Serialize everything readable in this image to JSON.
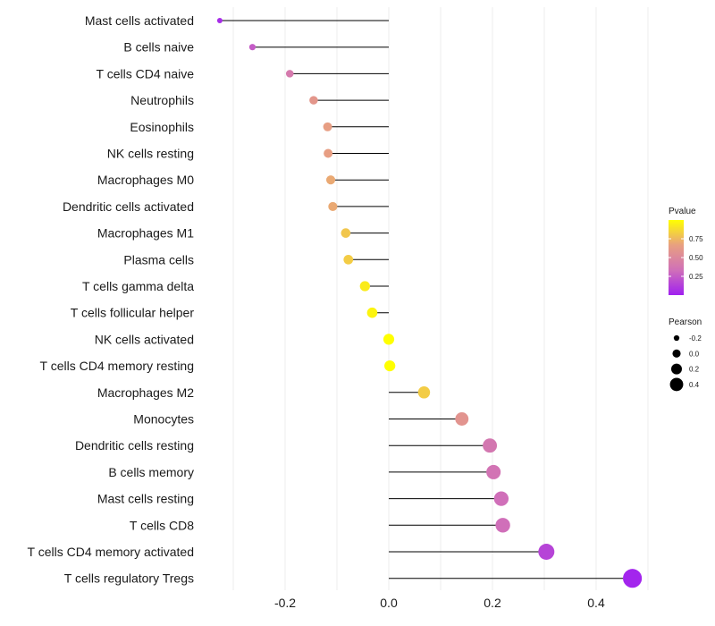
{
  "chart_data": {
    "type": "lollipop",
    "title": "",
    "xlabel": "",
    "ylabel": "",
    "xlim": [
      -0.3,
      0.5
    ],
    "xticks": [
      -0.2,
      0.0,
      0.2,
      0.4
    ],
    "xtick_labels": [
      "-0.2",
      "0.0",
      "0.2",
      "0.4"
    ],
    "categories": [
      "Mast cells activated",
      "B cells naive",
      "T cells CD4 naive",
      "Neutrophils",
      "Eosinophils",
      "NK cells resting",
      "Macrophages M0",
      "Dendritic cells activated",
      "Macrophages M1",
      "Plasma cells",
      "T cells gamma delta",
      "T cells follicular helper",
      "NK cells activated",
      "T cells CD4 memory resting",
      "Macrophages M2",
      "Monocytes",
      "Dendritic cells resting",
      "B cells memory",
      "Mast cells resting",
      "T cells CD8",
      "T cells CD4 memory activated",
      "T cells regulatory  Tregs"
    ],
    "pearson": [
      -0.326,
      -0.263,
      -0.191,
      -0.145,
      -0.118,
      -0.117,
      -0.112,
      -0.108,
      -0.083,
      -0.078,
      -0.046,
      -0.032,
      0.0,
      0.002,
      0.068,
      0.141,
      0.195,
      0.202,
      0.217,
      0.22,
      0.304,
      0.47
    ],
    "pvalue": [
      0.05,
      0.25,
      0.4,
      0.6,
      0.65,
      0.65,
      0.7,
      0.7,
      0.8,
      0.82,
      0.93,
      0.96,
      1.0,
      1.0,
      0.82,
      0.58,
      0.38,
      0.36,
      0.33,
      0.33,
      0.15,
      0.02
    ],
    "legend_pvalue": {
      "title": "Pvalue",
      "ticks": [
        0.25,
        0.5,
        0.75
      ],
      "tick_labels": [
        "0.25",
        "0.50",
        "0.75"
      ],
      "range": [
        0.0,
        1.0
      ],
      "colors": [
        "#a020f0",
        "#d070b8",
        "#e8a080",
        "#ffff00"
      ],
      "placement": "right"
    },
    "legend_pearson": {
      "title": "Pearson",
      "values": [
        -0.2,
        0.0,
        0.2,
        0.4
      ],
      "labels": [
        "-0.2",
        "0.0",
        "0.2",
        "0.4"
      ],
      "placement": "right"
    },
    "grid": true
  }
}
